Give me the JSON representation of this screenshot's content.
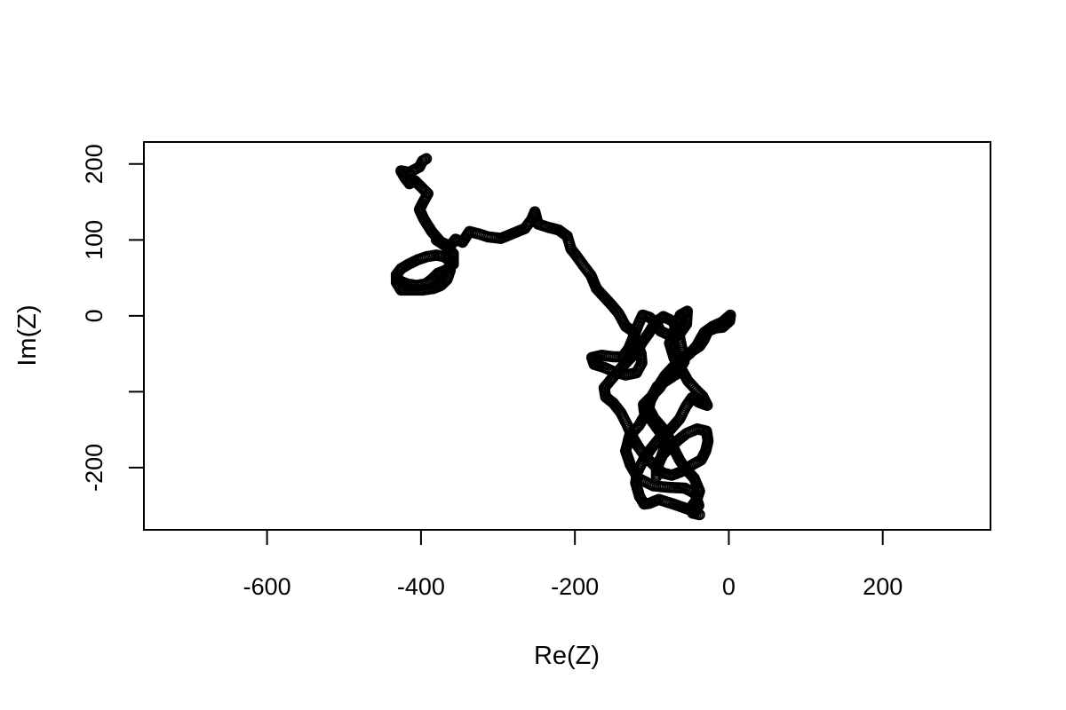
{
  "chart_data": {
    "type": "scatter",
    "title": "",
    "xlabel": "Re(Z)",
    "ylabel": "Im(Z)",
    "xlim": [
      -760,
      340
    ],
    "ylim": [
      -282,
      229
    ],
    "x_ticks": [
      -600,
      -400,
      -200,
      0,
      200
    ],
    "x_tick_labels": [
      "-600",
      "-400",
      "-200",
      "0",
      "200"
    ],
    "y_ticks": [
      200,
      100,
      0,
      -100,
      -200
    ],
    "y_tick_labels": [
      "200",
      "100",
      "0",
      "",
      "-200"
    ],
    "grid": false,
    "legend": "none",
    "marker": "open-circle",
    "marker_color": "#000000",
    "background": "#ffffff",
    "path": [
      [
        -393,
        207
      ],
      [
        -398,
        204
      ],
      [
        -402,
        196
      ],
      [
        -415,
        189
      ],
      [
        -426,
        191
      ],
      [
        -421,
        182
      ],
      [
        -415,
        174
      ],
      [
        -408,
        178
      ],
      [
        -398,
        168
      ],
      [
        -391,
        161
      ],
      [
        -397,
        150
      ],
      [
        -402,
        140
      ],
      [
        -396,
        127
      ],
      [
        -386,
        111
      ],
      [
        -374,
        97
      ],
      [
        -362,
        92
      ],
      [
        -355,
        101
      ],
      [
        -346,
        97
      ],
      [
        -337,
        111
      ],
      [
        -325,
        108
      ],
      [
        -313,
        104
      ],
      [
        -296,
        102
      ],
      [
        -277,
        110
      ],
      [
        -265,
        115
      ],
      [
        -256,
        127
      ],
      [
        -252,
        137
      ],
      [
        -248,
        121
      ],
      [
        -236,
        117
      ],
      [
        -221,
        113
      ],
      [
        -210,
        105
      ],
      [
        -205,
        88
      ],
      [
        -198,
        79
      ],
      [
        -188,
        65
      ],
      [
        -179,
        53
      ],
      [
        -172,
        36
      ],
      [
        -163,
        26
      ],
      [
        -152,
        14
      ],
      [
        -143,
        3
      ],
      [
        -134,
        -14
      ],
      [
        -125,
        -20
      ],
      [
        -120,
        -34
      ],
      [
        -114,
        -50
      ],
      [
        -113,
        -62
      ],
      [
        -120,
        -75
      ],
      [
        -134,
        -78
      ],
      [
        -151,
        -73
      ],
      [
        -162,
        -68
      ],
      [
        -175,
        -64
      ],
      [
        -178,
        -55
      ],
      [
        -165,
        -52
      ],
      [
        -150,
        -54
      ],
      [
        -138,
        -54
      ],
      [
        -130,
        -43
      ],
      [
        -124,
        -28
      ],
      [
        -117,
        -10
      ],
      [
        -112,
        1
      ],
      [
        -103,
        -2
      ],
      [
        -94,
        -10
      ],
      [
        -89,
        -20
      ],
      [
        -76,
        -26
      ],
      [
        -64,
        -24
      ],
      [
        -55,
        -11
      ],
      [
        -54,
        6
      ],
      [
        -63,
        1
      ],
      [
        -70,
        -17
      ],
      [
        -77,
        -36
      ],
      [
        -71,
        -56
      ],
      [
        -62,
        -70
      ],
      [
        -53,
        -86
      ],
      [
        -43,
        -97
      ],
      [
        -34,
        -106
      ],
      [
        -28,
        -118
      ],
      [
        -39,
        -114
      ],
      [
        -48,
        -108
      ],
      [
        -56,
        -120
      ],
      [
        -64,
        -136
      ],
      [
        -76,
        -150
      ],
      [
        -89,
        -160
      ],
      [
        -101,
        -175
      ],
      [
        -111,
        -190
      ],
      [
        -119,
        -206
      ],
      [
        -121,
        -220
      ],
      [
        -116,
        -238
      ],
      [
        -110,
        -248
      ],
      [
        -103,
        -247
      ],
      [
        -91,
        -242
      ],
      [
        -72,
        -248
      ],
      [
        -55,
        -254
      ],
      [
        -44,
        -258
      ],
      [
        -39,
        -250
      ],
      [
        -44,
        -234
      ],
      [
        -57,
        -227
      ],
      [
        -78,
        -226
      ],
      [
        -98,
        -224
      ],
      [
        -118,
        -214
      ],
      [
        -128,
        -196
      ],
      [
        -134,
        -178
      ],
      [
        -129,
        -158
      ],
      [
        -117,
        -145
      ],
      [
        -109,
        -131
      ],
      [
        -111,
        -117
      ],
      [
        -102,
        -108
      ],
      [
        -90,
        -95
      ],
      [
        -80,
        -80
      ],
      [
        -70,
        -71
      ],
      [
        -63,
        -58
      ],
      [
        -50,
        -48
      ],
      [
        -38,
        -40
      ],
      [
        -32,
        -31
      ],
      [
        -27,
        -20
      ],
      [
        -17,
        -16
      ],
      [
        -8,
        -15
      ],
      [
        1,
        -7
      ],
      [
        2,
        1
      ],
      [
        -8,
        -8
      ],
      [
        -21,
        -14
      ],
      [
        -32,
        -22
      ],
      [
        -42,
        -40
      ],
      [
        -51,
        -50
      ],
      [
        -61,
        -58
      ],
      [
        -72,
        -67
      ],
      [
        -83,
        -79
      ],
      [
        -93,
        -95
      ],
      [
        -102,
        -112
      ],
      [
        -107,
        -126
      ],
      [
        -101,
        -137
      ],
      [
        -89,
        -154
      ],
      [
        -82,
        -170
      ],
      [
        -88,
        -187
      ],
      [
        -94,
        -197
      ],
      [
        -94,
        -212
      ],
      [
        -92,
        -197
      ],
      [
        -86,
        -183
      ],
      [
        -78,
        -175
      ],
      [
        -66,
        -164
      ],
      [
        -55,
        -155
      ],
      [
        -41,
        -149
      ],
      [
        -29,
        -152
      ],
      [
        -27,
        -165
      ],
      [
        -30,
        -178
      ],
      [
        -36,
        -190
      ],
      [
        -47,
        -196
      ],
      [
        -61,
        -205
      ],
      [
        -74,
        -210
      ],
      [
        -86,
        -207
      ],
      [
        -96,
        -198
      ],
      [
        -108,
        -186
      ],
      [
        -118,
        -172
      ],
      [
        -126,
        -158
      ],
      [
        -132,
        -144
      ],
      [
        -140,
        -128
      ],
      [
        -150,
        -115
      ],
      [
        -160,
        -107
      ],
      [
        -162,
        -95
      ],
      [
        -153,
        -84
      ],
      [
        -142,
        -71
      ],
      [
        -131,
        -59
      ],
      [
        -120,
        -48
      ],
      [
        -112,
        -34
      ],
      [
        -104,
        -23
      ],
      [
        -96,
        -9
      ],
      [
        -85,
        -1
      ],
      [
        -73,
        -7
      ],
      [
        -65,
        -23
      ],
      [
        -61,
        -43
      ],
      [
        -58,
        -60
      ],
      [
        -67,
        -76
      ],
      [
        -79,
        -84
      ],
      [
        -93,
        -93
      ],
      [
        -101,
        -108
      ],
      [
        -104,
        -122
      ],
      [
        -97,
        -135
      ],
      [
        -86,
        -148
      ],
      [
        -77,
        -162
      ],
      [
        -70,
        -178
      ],
      [
        -64,
        -190
      ],
      [
        -56,
        -202
      ],
      [
        -45,
        -214
      ],
      [
        -38,
        -231
      ],
      [
        -42,
        -243
      ],
      [
        -49,
        -252
      ],
      [
        -47,
        -260
      ],
      [
        -38,
        -262
      ]
    ],
    "path_2": [
      [
        -380,
        100
      ],
      [
        -368,
        92
      ],
      [
        -358,
        82
      ],
      [
        -358,
        68
      ],
      [
        -368,
        60
      ],
      [
        -378,
        56
      ],
      [
        -386,
        48
      ],
      [
        -394,
        42
      ],
      [
        -406,
        40
      ],
      [
        -418,
        42
      ],
      [
        -428,
        46
      ],
      [
        -432,
        54
      ],
      [
        -426,
        62
      ],
      [
        -416,
        68
      ],
      [
        -404,
        74
      ],
      [
        -392,
        78
      ],
      [
        -380,
        80
      ],
      [
        -370,
        78
      ],
      [
        -362,
        72
      ],
      [
        -362,
        60
      ],
      [
        -366,
        48
      ],
      [
        -374,
        40
      ],
      [
        -384,
        36
      ],
      [
        -398,
        34
      ],
      [
        -412,
        34
      ],
      [
        -426,
        34
      ],
      [
        -432,
        44
      ],
      [
        -432,
        54
      ]
    ]
  }
}
